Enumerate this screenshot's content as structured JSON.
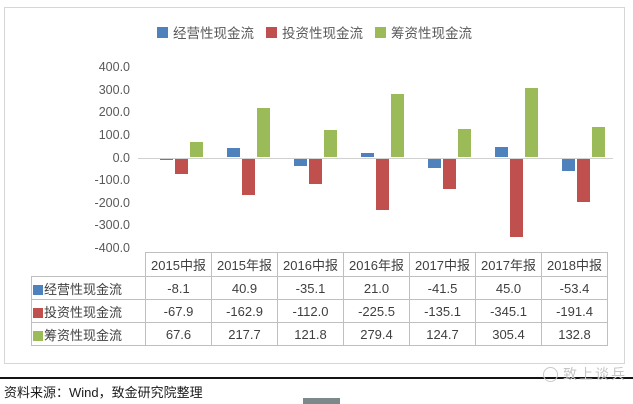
{
  "chart_data": {
    "type": "bar",
    "categories": [
      "2015中报",
      "2015年报",
      "2016中报",
      "2016年报",
      "2017中报",
      "2017年报",
      "2018中报"
    ],
    "series": [
      {
        "name": "经营性现金流",
        "color": "#4f81bd",
        "values": [
          -8.1,
          40.9,
          -35.1,
          21.0,
          -41.5,
          45.0,
          -53.4
        ]
      },
      {
        "name": "投资性现金流",
        "color": "#c0504d",
        "values": [
          -67.9,
          -162.9,
          -112.0,
          -225.5,
          -135.1,
          -345.1,
          -191.4
        ]
      },
      {
        "name": "筹资性现金流",
        "color": "#9bbb59",
        "values": [
          67.6,
          217.7,
          121.8,
          279.4,
          124.7,
          305.4,
          132.8
        ]
      }
    ],
    "title": "",
    "xlabel": "",
    "ylabel": "",
    "ylim": [
      -400,
      400
    ],
    "ytick_step": 100,
    "yticks": [
      "400.0",
      "300.0",
      "200.0",
      "100.0",
      "0.0",
      "-100.0",
      "-200.0",
      "-300.0",
      "-400.0"
    ],
    "grid": false,
    "legend_position": "top",
    "value_format_decimals": 1
  },
  "footer": {
    "source": "资料来源：Wind，致金研究院整理"
  },
  "watermark": {
    "text": "致上谈兵"
  }
}
